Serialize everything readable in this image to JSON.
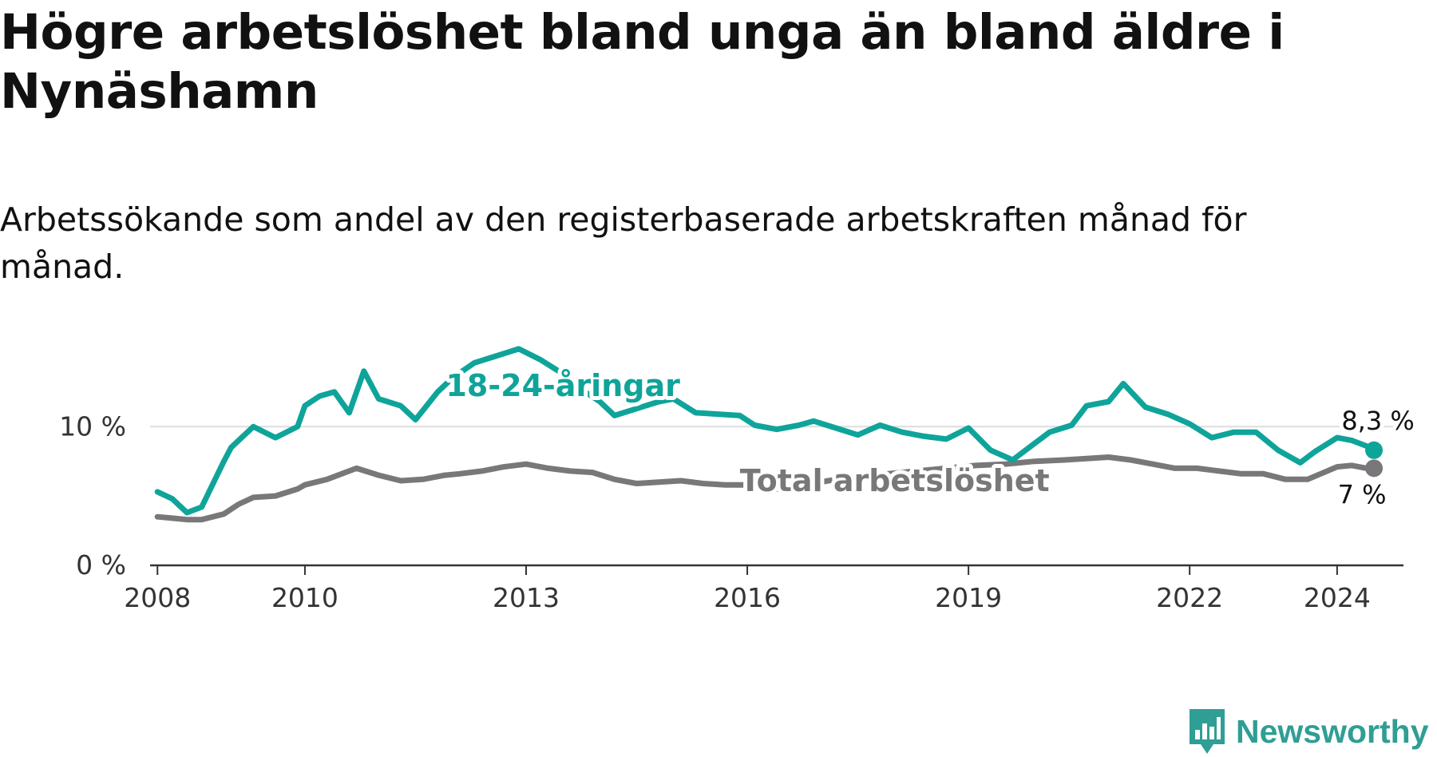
{
  "header": {
    "title": "Högre arbetslöshet bland unga än bland äldre i Nynäshamn",
    "subtitle": "Arbetssökande som andel av den registerbaserade arbetskraften månad för månad."
  },
  "branding": {
    "name": "Newsworthy",
    "color": "#2f9e94"
  },
  "colors": {
    "youth": "#0fa49a",
    "total": "#7a777a",
    "axis": "#333333",
    "grid": "#dddddd"
  },
  "chart_data": {
    "type": "line",
    "title": "Högre arbetslöshet bland unga än bland äldre i Nynäshamn",
    "subtitle": "Arbetssökande som andel av den registerbaserade arbetskraften månad för månad.",
    "xlabel": "",
    "ylabel": "",
    "xlim": [
      2007.9,
      2024.9
    ],
    "ylim": [
      0,
      16
    ],
    "grid": true,
    "x_ticks": [
      2008,
      2010,
      2013,
      2016,
      2019,
      2022,
      2024
    ],
    "x_tick_labels": [
      "2008",
      "2010",
      "2013",
      "2016",
      "2019",
      "2022",
      "2024"
    ],
    "y_ticks": [
      0,
      10
    ],
    "y_tick_labels": [
      "0 %",
      "10 %"
    ],
    "series": [
      {
        "name": "18-24-åringar",
        "label": "18-24-åringar",
        "color": "#0fa49a",
        "end_label": "8,3 %",
        "x": [
          2008.0,
          2008.2,
          2008.4,
          2008.6,
          2008.9,
          2009.0,
          2009.3,
          2009.6,
          2009.9,
          2010.0,
          2010.2,
          2010.4,
          2010.6,
          2010.8,
          2011.0,
          2011.3,
          2011.5,
          2011.8,
          2012.0,
          2012.3,
          2012.6,
          2012.9,
          2013.2,
          2013.5,
          2013.8,
          2014.0,
          2014.2,
          2014.5,
          2014.8,
          2015.0,
          2015.3,
          2015.6,
          2015.9,
          2016.1,
          2016.4,
          2016.7,
          2016.9,
          2017.2,
          2017.5,
          2017.8,
          2018.1,
          2018.4,
          2018.7,
          2019.0,
          2019.3,
          2019.6,
          2019.9,
          2020.1,
          2020.4,
          2020.6,
          2020.9,
          2021.1,
          2021.4,
          2021.7,
          2022.0,
          2022.3,
          2022.6,
          2022.9,
          2023.2,
          2023.5,
          2023.7,
          2024.0,
          2024.2,
          2024.4,
          2024.5
        ],
        "values": [
          5.3,
          4.8,
          3.8,
          4.2,
          7.5,
          8.5,
          10.0,
          9.2,
          10.0,
          11.5,
          12.2,
          12.5,
          11.0,
          14.0,
          12.0,
          11.5,
          10.5,
          12.5,
          13.5,
          14.6,
          15.1,
          15.6,
          14.8,
          13.8,
          12.5,
          11.8,
          10.8,
          11.3,
          11.8,
          12.0,
          11.0,
          10.9,
          10.8,
          10.1,
          9.8,
          10.1,
          10.4,
          9.9,
          9.4,
          10.1,
          9.6,
          9.3,
          9.1,
          9.9,
          8.3,
          7.6,
          8.8,
          9.6,
          10.1,
          11.5,
          11.8,
          13.1,
          11.4,
          10.9,
          10.2,
          9.2,
          9.6,
          9.6,
          8.3,
          7.4,
          8.2,
          9.2,
          9.0,
          8.6,
          8.3
        ]
      },
      {
        "name": "Total arbetslöshet",
        "label": "Total arbetslöshet",
        "color": "#7a777a",
        "end_label": "7 %",
        "x": [
          2008.0,
          2008.2,
          2008.4,
          2008.6,
          2008.9,
          2009.1,
          2009.3,
          2009.6,
          2009.9,
          2010.0,
          2010.3,
          2010.5,
          2010.7,
          2011.0,
          2011.3,
          2011.6,
          2011.9,
          2012.1,
          2012.4,
          2012.7,
          2013.0,
          2013.3,
          2013.6,
          2013.9,
          2014.2,
          2014.5,
          2014.8,
          2015.1,
          2015.4,
          2015.7,
          2016.0,
          2016.2,
          2016.5,
          2016.8,
          2017.1,
          2017.5,
          2017.9,
          2018.3,
          2018.7,
          2019.1,
          2019.5,
          2019.9,
          2020.3,
          2020.6,
          2020.9,
          2021.2,
          2021.5,
          2021.8,
          2022.1,
          2022.4,
          2022.7,
          2023.0,
          2023.3,
          2023.6,
          2024.0,
          2024.2,
          2024.4,
          2024.5
        ],
        "values": [
          3.5,
          3.4,
          3.3,
          3.3,
          3.7,
          4.4,
          4.9,
          5.0,
          5.5,
          5.8,
          6.2,
          6.6,
          7.0,
          6.5,
          6.1,
          6.2,
          6.5,
          6.6,
          6.8,
          7.1,
          7.3,
          7.0,
          6.8,
          6.7,
          6.2,
          5.9,
          6.0,
          6.1,
          5.9,
          5.8,
          5.8,
          5.5,
          5.5,
          5.8,
          6.1,
          6.4,
          6.6,
          6.8,
          7.0,
          7.2,
          7.3,
          7.5,
          7.6,
          7.7,
          7.8,
          7.6,
          7.3,
          7.0,
          7.0,
          6.8,
          6.6,
          6.6,
          6.2,
          6.2,
          7.1,
          7.2,
          7.0,
          7.0
        ]
      }
    ]
  }
}
